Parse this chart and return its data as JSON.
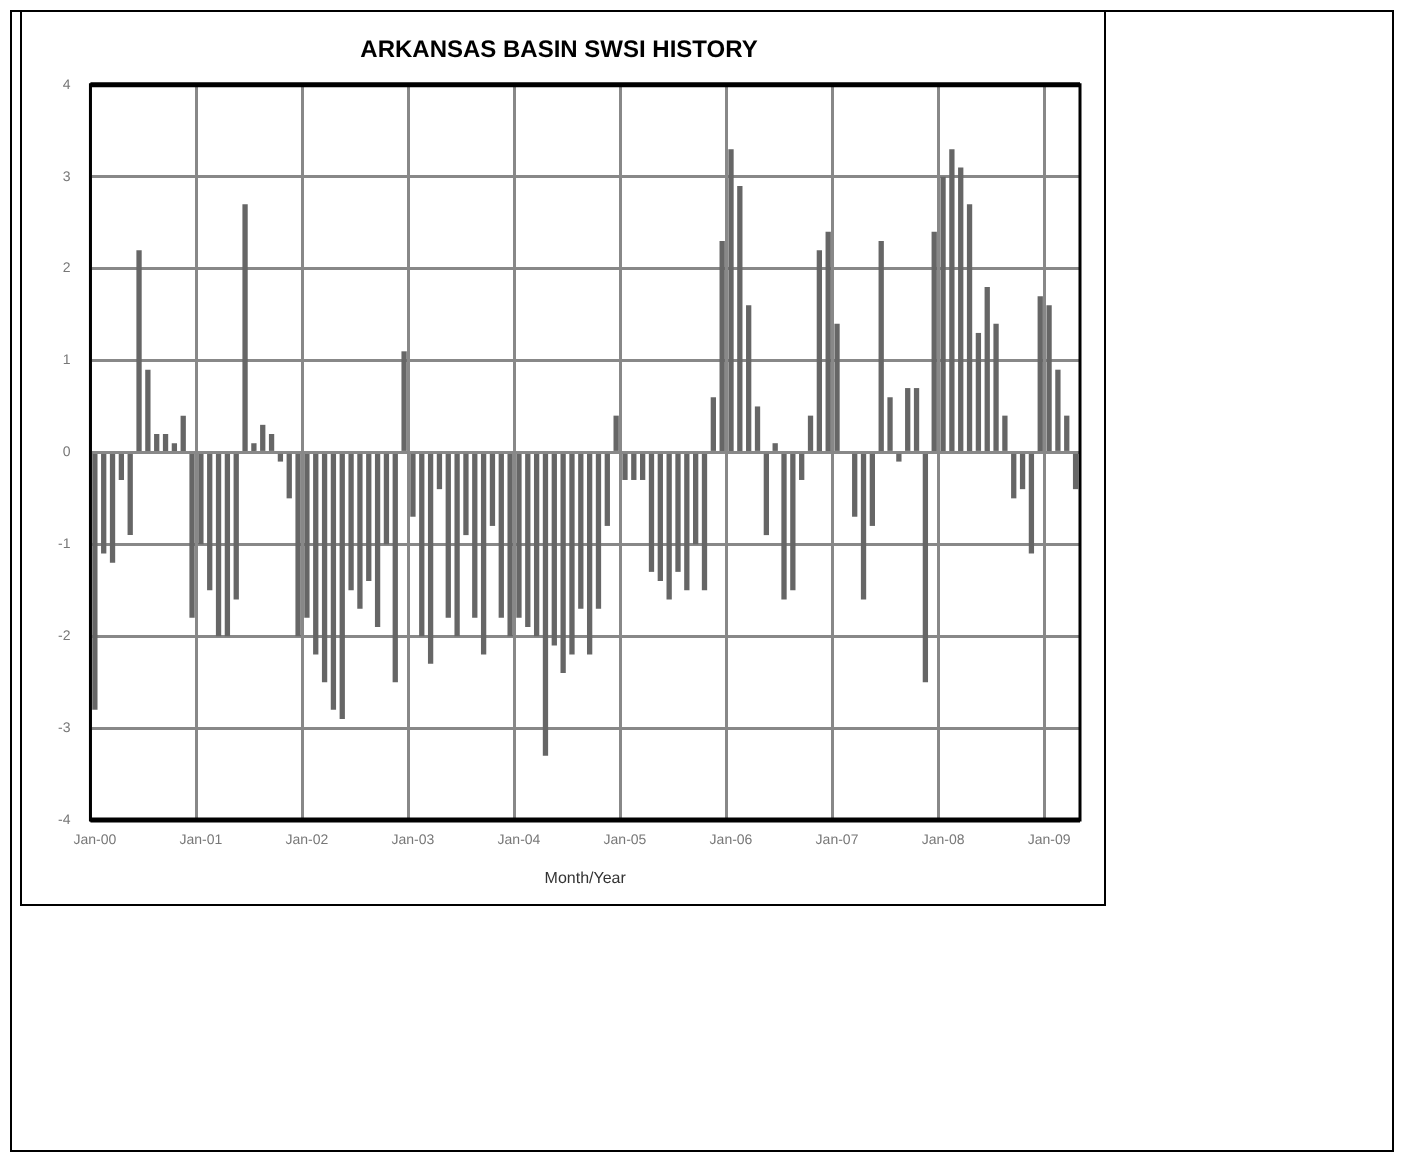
{
  "chart_data": {
    "type": "bar",
    "title": "ARKANSAS BASIN SWSI HISTORY",
    "xlabel": "Month/Year",
    "categories": [
      "Jan-00",
      null,
      null,
      null,
      null,
      null,
      null,
      null,
      null,
      null,
      null,
      null,
      "Jan-01",
      null,
      null,
      null,
      null,
      null,
      null,
      null,
      null,
      null,
      null,
      null,
      "Jan-02",
      null,
      null,
      null,
      null,
      null,
      null,
      null,
      null,
      null,
      null,
      null,
      "Jan-03",
      null,
      null,
      null,
      null,
      null,
      null,
      null,
      null,
      null,
      null,
      null,
      "Jan-04",
      null,
      null,
      null,
      null,
      null,
      null,
      null,
      null,
      null,
      null,
      null,
      "Jan-05",
      null,
      null,
      null,
      null,
      null,
      null,
      null,
      null,
      null,
      null,
      null,
      "Jan-06",
      null,
      null,
      null,
      null,
      null,
      null,
      null,
      null,
      null,
      null,
      null,
      "Jan-07",
      null,
      null,
      null,
      null,
      null,
      null,
      null,
      null,
      null,
      null,
      null,
      "Jan-08",
      null,
      null,
      null,
      null,
      null,
      null,
      null,
      null,
      null,
      null,
      null,
      "Jan-09",
      null,
      null,
      null
    ],
    "values": [
      -2.8,
      -1.1,
      -1.2,
      -0.3,
      -0.9,
      2.2,
      0.9,
      0.2,
      0.2,
      0.1,
      0.4,
      -1.8,
      -1.0,
      -1.5,
      -2.0,
      -2.0,
      -1.6,
      2.7,
      0.1,
      0.3,
      0.2,
      -0.1,
      -0.5,
      -2.0,
      -1.8,
      -2.2,
      -2.5,
      -2.8,
      -2.9,
      -1.5,
      -1.7,
      -1.4,
      -1.9,
      -1.0,
      -2.5,
      1.1,
      -0.7,
      -2.0,
      -2.3,
      -0.4,
      -1.8,
      -2.0,
      -0.9,
      -1.8,
      -2.2,
      -0.8,
      -1.8,
      -2.0,
      -1.8,
      -1.9,
      -2.0,
      -3.3,
      -2.1,
      -2.4,
      -2.2,
      -1.7,
      -2.2,
      -1.7,
      -0.8,
      0.4,
      -0.3,
      -0.3,
      -0.3,
      -1.3,
      -1.4,
      -1.6,
      -1.3,
      -1.5,
      -1.0,
      -1.5,
      0.6,
      2.3,
      3.3,
      2.9,
      1.6,
      0.5,
      -0.9,
      0.1,
      -1.6,
      -1.5,
      -0.3,
      0.4,
      2.2,
      2.4,
      1.4,
      null,
      -0.7,
      -1.6,
      -0.8,
      2.3,
      0.6,
      -0.1,
      0.7,
      0.7,
      -2.5,
      2.4,
      3.0,
      3.3,
      3.1,
      2.7,
      1.3,
      1.8,
      1.4,
      0.4,
      -0.5,
      -0.4,
      -1.1,
      1.7,
      1.6,
      0.9,
      0.4,
      -0.4
    ],
    "color": "#666666",
    "ylim": [
      -4,
      4
    ],
    "yticks": [
      -4,
      -3,
      -2,
      -1,
      0,
      1,
      2,
      3,
      4
    ],
    "grid": true
  }
}
